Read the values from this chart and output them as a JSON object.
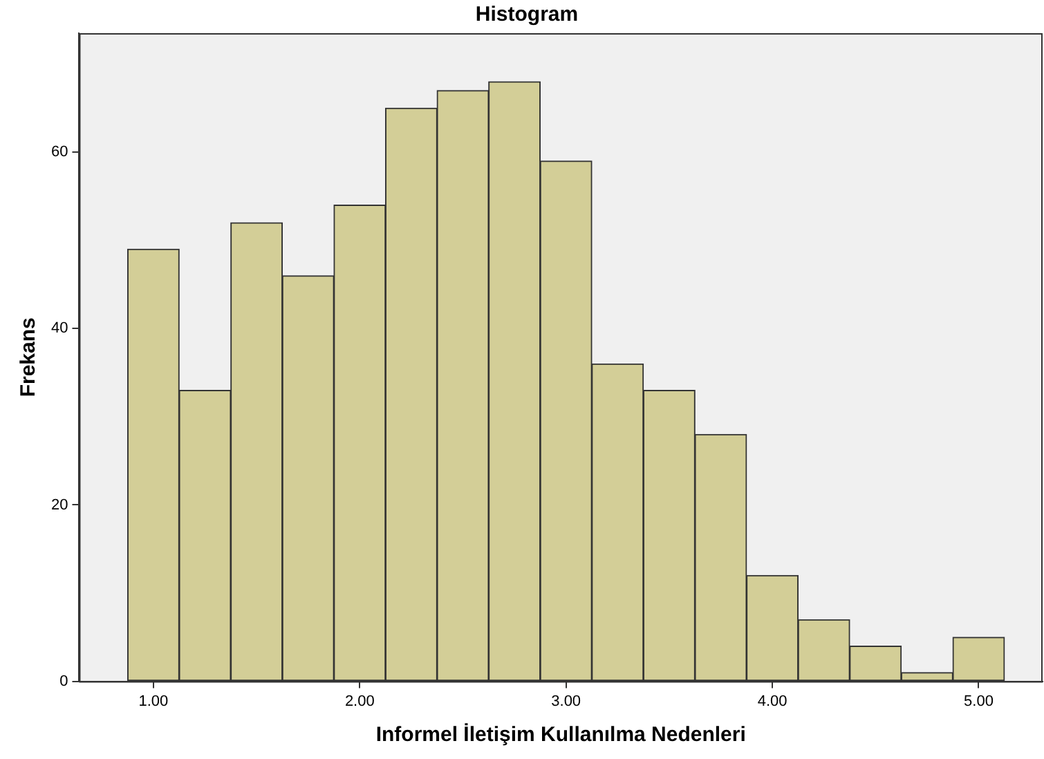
{
  "chart_data": {
    "type": "histogram",
    "title": "Histogram",
    "xlabel": "Informel İletişim Kullanılma Nedenleri",
    "ylabel": "Frekans",
    "bins": [
      0.875,
      1.125,
      1.375,
      1.625,
      1.875,
      2.125,
      2.375,
      2.625,
      2.875,
      3.125,
      3.375,
      3.625,
      3.875,
      4.125,
      4.375,
      4.625,
      4.875,
      5.125
    ],
    "values": [
      49,
      33,
      52,
      46,
      54,
      65,
      67,
      68,
      59,
      36,
      33,
      28,
      12,
      7,
      4,
      1,
      5
    ],
    "color": "#d3ce97",
    "xlim": [
      0.64,
      5.31
    ],
    "xticks": [
      {
        "value": 1,
        "label": "1.00"
      },
      {
        "value": 2,
        "label": "2.00"
      },
      {
        "value": 3,
        "label": "3.00"
      },
      {
        "value": 4,
        "label": "4.00"
      },
      {
        "value": 5,
        "label": "5.00"
      }
    ],
    "ylim": [
      0,
      73.5
    ],
    "yticks": [
      0,
      20,
      40,
      60
    ],
    "grid": false,
    "legend": false
  }
}
